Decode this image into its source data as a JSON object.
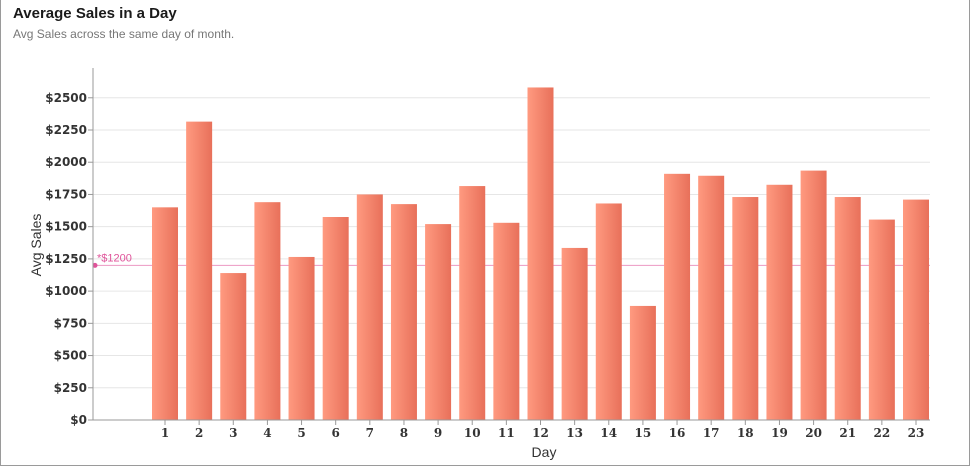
{
  "header": {
    "title": "Average Sales in a Day",
    "subtitle": "Avg Sales across the same day of month."
  },
  "colors": {
    "bar_light": "#ff9a80",
    "bar_dark": "#e8705a",
    "reference": "#e0539a",
    "grid": "#e6e6e6",
    "axis": "#999999"
  },
  "chart_data": {
    "type": "bar",
    "title": "Average Sales in a Day",
    "subtitle": "Avg Sales across the same day of month.",
    "xlabel": "Day",
    "ylabel": "Avg Sales",
    "categories": [
      "1",
      "2",
      "3",
      "4",
      "5",
      "6",
      "7",
      "8",
      "9",
      "10",
      "11",
      "12",
      "13",
      "14",
      "15",
      "16",
      "17",
      "18",
      "19",
      "20",
      "21",
      "22",
      "23"
    ],
    "values": [
      1650,
      2315,
      1140,
      1690,
      1265,
      1575,
      1750,
      1675,
      1520,
      1815,
      1530,
      2580,
      1335,
      1680,
      885,
      1910,
      1895,
      1730,
      1825,
      1935,
      1730,
      1555,
      1710
    ],
    "ylim": [
      0,
      2700
    ],
    "yticks": [
      0,
      250,
      500,
      750,
      1000,
      1250,
      1500,
      1750,
      2000,
      2250,
      2500
    ],
    "ytick_labels": [
      "$0",
      "$250",
      "$500",
      "$750",
      "$1000",
      "$1250",
      "$1500",
      "$1750",
      "$2000",
      "$2250",
      "$2500"
    ],
    "grid": true,
    "reference_line": {
      "value": 1200,
      "label": "*$1200"
    }
  }
}
